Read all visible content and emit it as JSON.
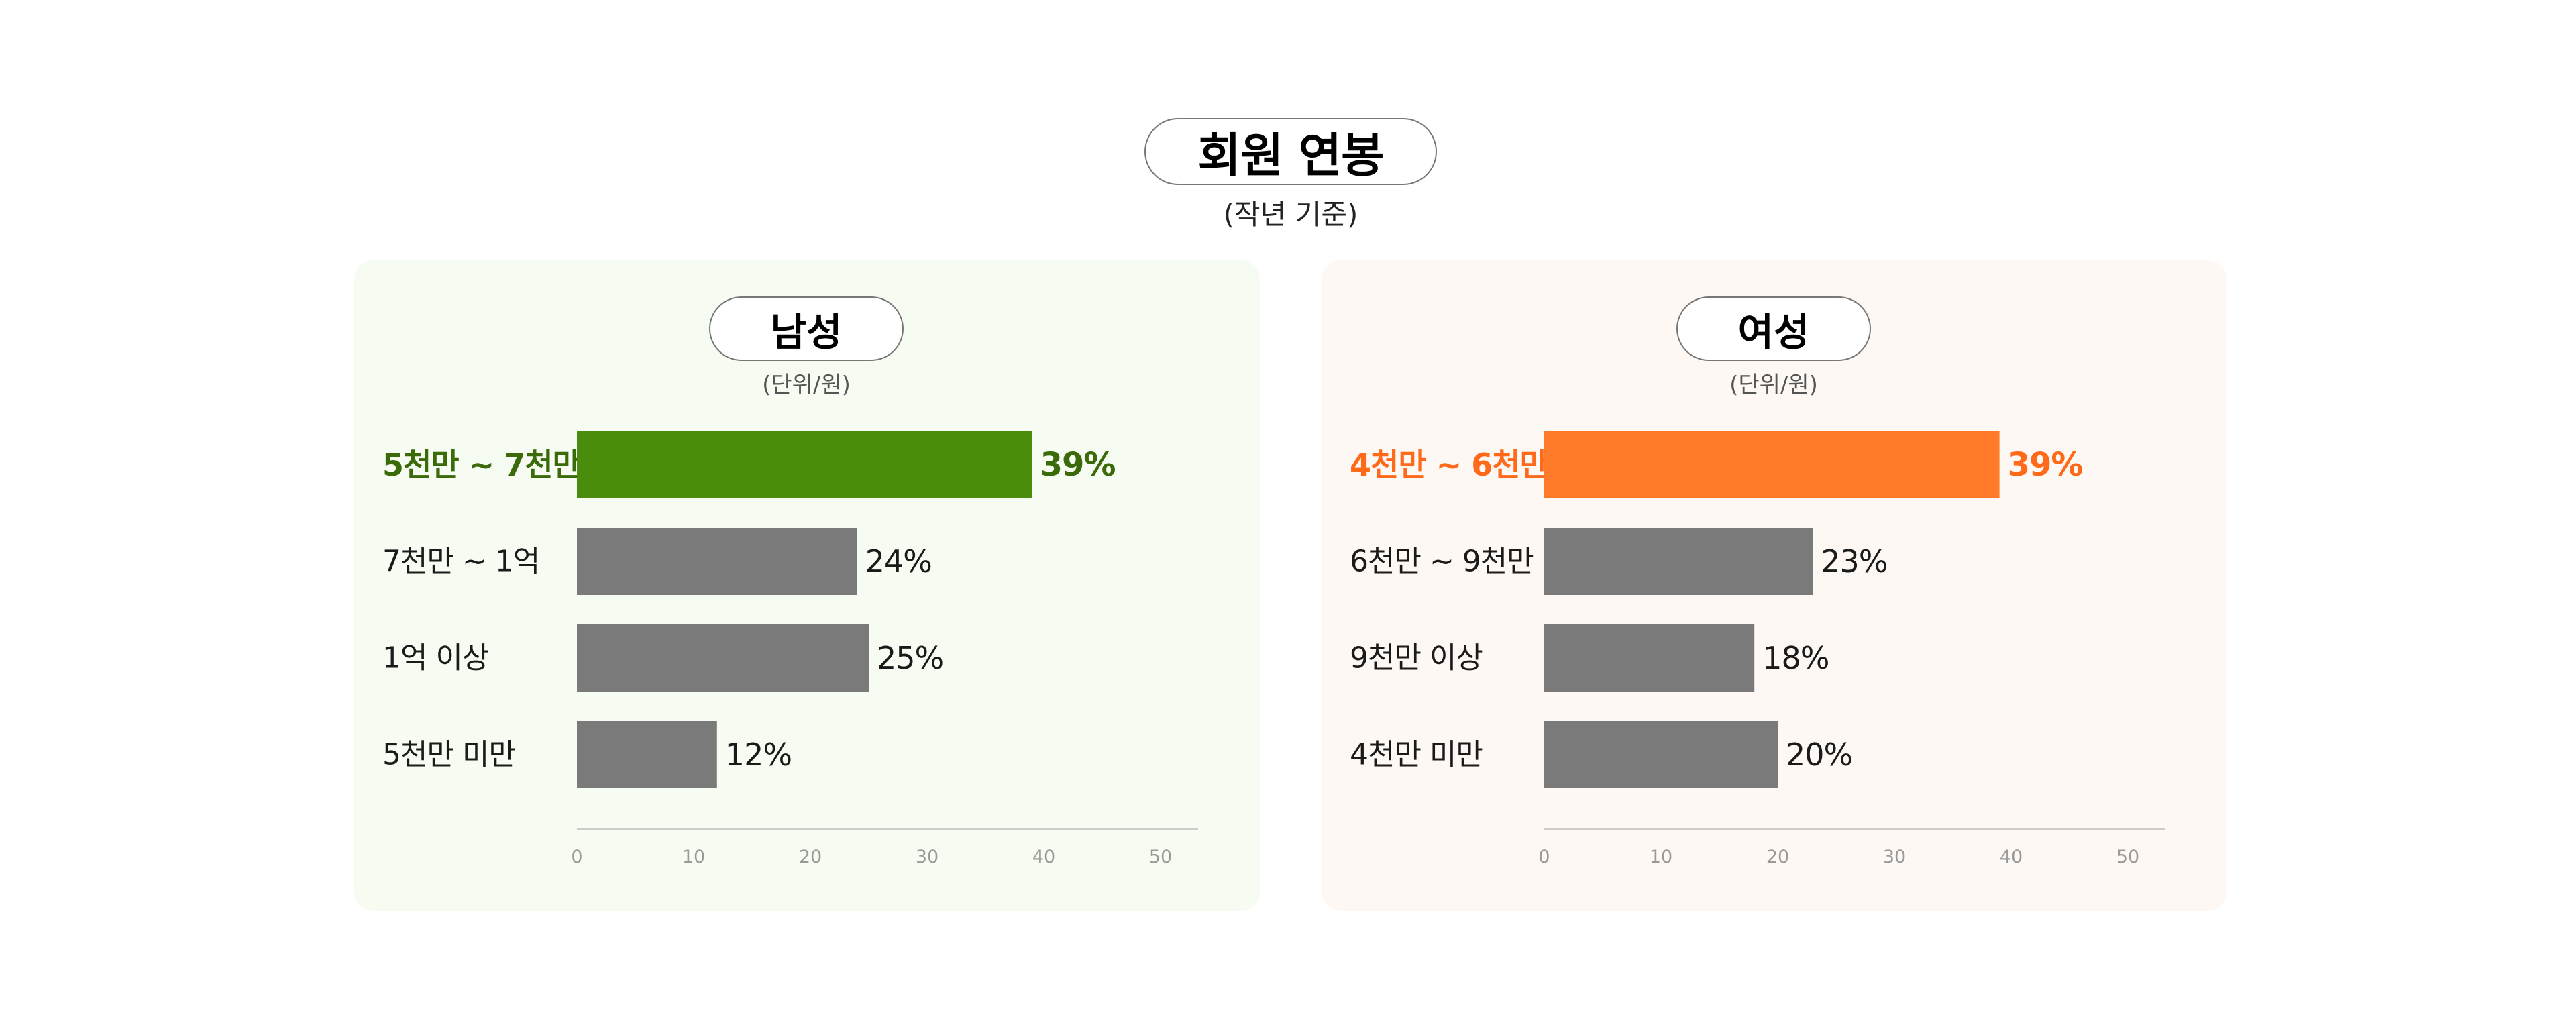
{
  "header": {
    "title": "회원 연봉",
    "subtitle": "(작년 기준)"
  },
  "colors": {
    "bar_default": "#7a7a7a",
    "male_accent": "#4a8c0c",
    "male_label": "#3a6a0a",
    "female_accent": "#ff7a29",
    "female_label": "#ff6a1a",
    "male_panel_bg": "#f7fcf2",
    "female_panel_bg": "#fdf8f4",
    "axis_line": "#cccccc",
    "tick_text": "#999999"
  },
  "panels": [
    {
      "title": "남성",
      "unit": "(단위/원)"
    },
    {
      "title": "여성",
      "unit": "(단위/원)"
    }
  ],
  "chart_data": [
    {
      "type": "bar",
      "orientation": "horizontal",
      "title": "남성",
      "categories": [
        "5천만 ~ 7천만",
        "7천만 ~ 1억",
        "1억 이상",
        "5천만 미만"
      ],
      "values": [
        39,
        24,
        25,
        12
      ],
      "value_labels": [
        "39%",
        "24%",
        "25%",
        "12%"
      ],
      "highlight_index": 0,
      "xlim": [
        0,
        54
      ],
      "xticks": [
        0,
        10,
        20,
        30,
        40,
        50
      ],
      "tick_labels": [
        "0",
        "10",
        "20",
        "30",
        "40",
        "50"
      ],
      "grid": false,
      "legend": "none"
    },
    {
      "type": "bar",
      "orientation": "horizontal",
      "title": "여성",
      "categories": [
        "4천만 ~ 6천만",
        "6천만 ~ 9천만",
        "9천만 이상",
        "4천만 미만"
      ],
      "values": [
        39,
        23,
        18,
        20
      ],
      "value_labels": [
        "39%",
        "23%",
        "18%",
        "20%"
      ],
      "highlight_index": 0,
      "xlim": [
        0,
        54
      ],
      "xticks": [
        0,
        10,
        20,
        30,
        40,
        50
      ],
      "tick_labels": [
        "0",
        "10",
        "20",
        "30",
        "40",
        "50"
      ],
      "grid": false,
      "legend": "none"
    }
  ]
}
